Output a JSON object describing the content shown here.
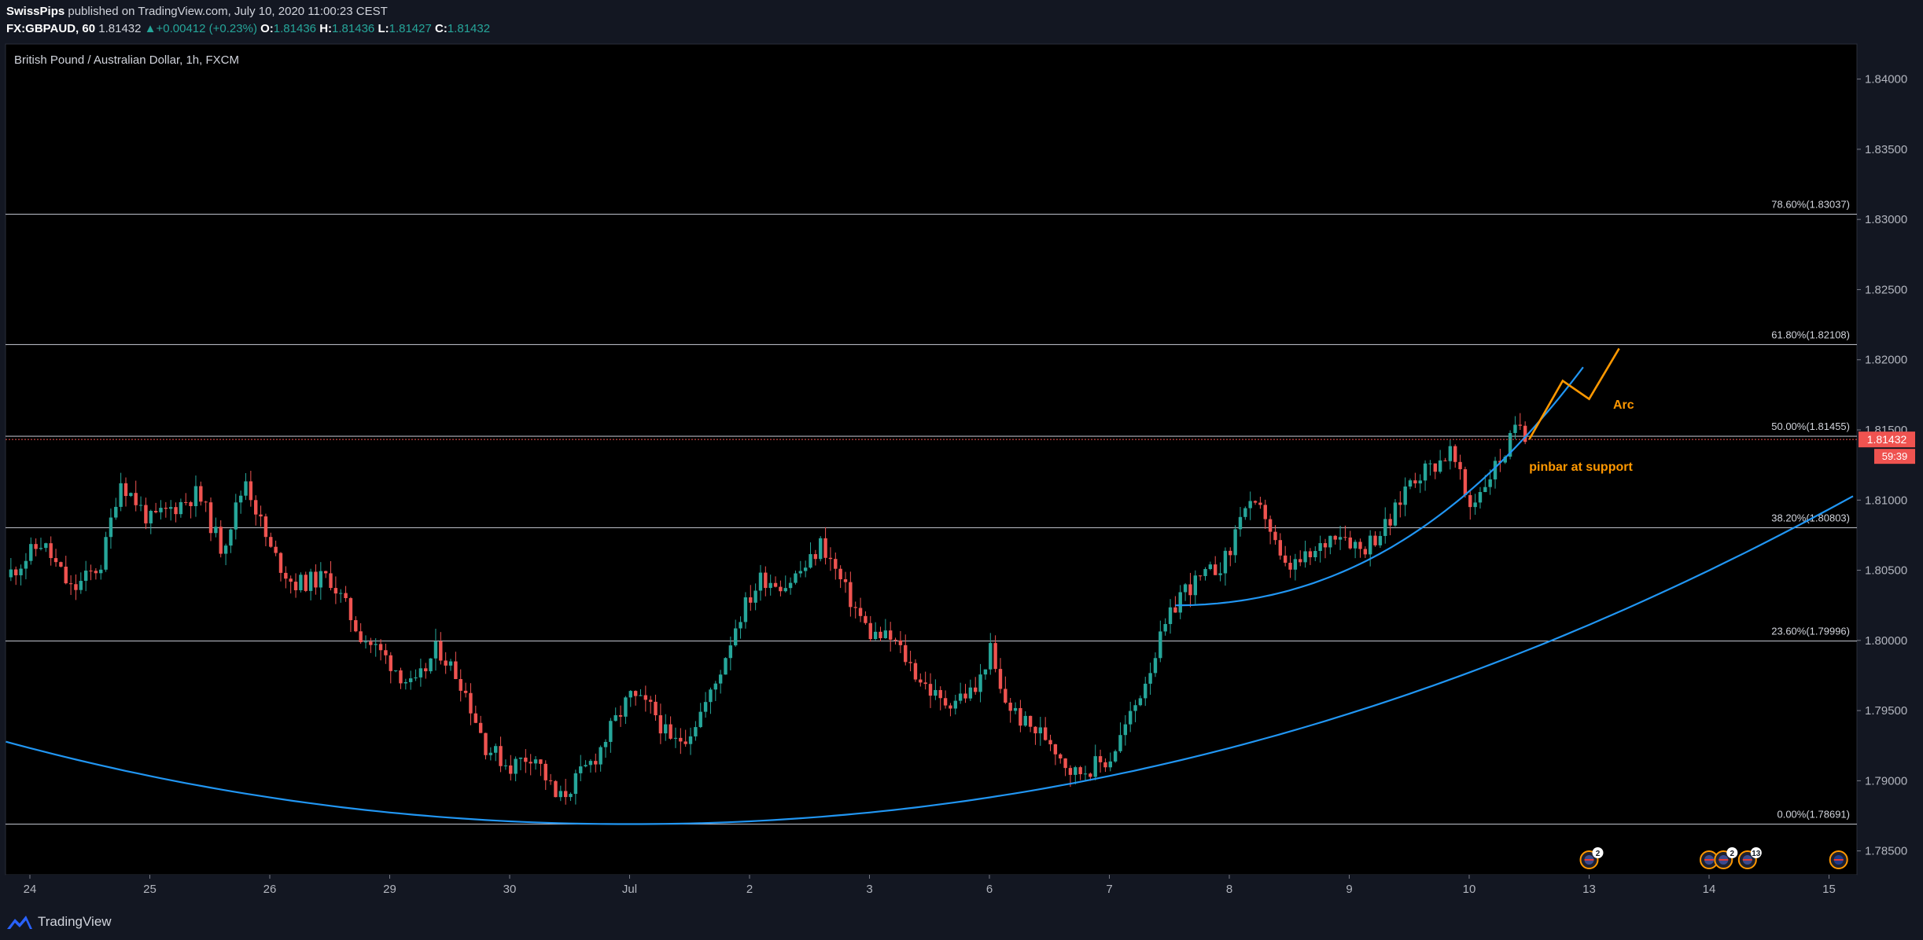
{
  "header": {
    "author": "SwissPips",
    "published": "published on TradingView.com, July 10, 2020 11:00:23 CEST",
    "symbol": "FX:GBPAUD, 60",
    "last": "1.81432",
    "change": "+0.00412 (+0.23%)",
    "open_label": "O:",
    "open": "1.81436",
    "high_label": "H:",
    "high": "1.81436",
    "low_label": "L:",
    "low": "1.81427",
    "close_label": "C:",
    "close": "1.81432",
    "up_color": "#26a69a"
  },
  "footer": {
    "brand": "TradingView",
    "brand_icon": "tradingview-logo-icon"
  },
  "chart_data": {
    "type": "candlestick",
    "title": "British Pound / Australian Dollar, 1h, FXCM",
    "ylim": [
      1.7833,
      1.8425
    ],
    "y_ticks": [
      1.785,
      1.79,
      1.795,
      1.8,
      1.805,
      1.81,
      1.815,
      1.82,
      1.825,
      1.83,
      1.835,
      1.84
    ],
    "y_tick_labels": [
      "1.78500",
      "1.79000",
      "1.79500",
      "1.80000",
      "1.80500",
      "1.81000",
      "1.81500",
      "1.82000",
      "1.82500",
      "1.83000",
      "1.83500",
      "1.84000"
    ],
    "x_ticks": [
      {
        "label": "24",
        "slot": 0
      },
      {
        "label": "25",
        "slot": 1
      },
      {
        "label": "26",
        "slot": 2
      },
      {
        "label": "29",
        "slot": 3
      },
      {
        "label": "30",
        "slot": 4
      },
      {
        "label": "Jul",
        "slot": 5
      },
      {
        "label": "2",
        "slot": 6
      },
      {
        "label": "3",
        "slot": 7
      },
      {
        "label": "6",
        "slot": 8
      },
      {
        "label": "7",
        "slot": 9
      },
      {
        "label": "8",
        "slot": 10
      },
      {
        "label": "9",
        "slot": 11
      },
      {
        "label": "10",
        "slot": 12
      },
      {
        "label": "13",
        "slot": 13
      },
      {
        "label": "14",
        "slot": 14
      },
      {
        "label": "15",
        "slot": 15
      }
    ],
    "current_price": {
      "value": 1.81432,
      "label": "1.81432",
      "countdown": "59:39",
      "color": "#ef5350"
    },
    "fib_levels": [
      {
        "pct": "0.00%",
        "value": 1.78691,
        "label": "0.00%(1.78691)"
      },
      {
        "pct": "23.60%",
        "value": 1.79996,
        "label": "23.60%(1.79996)"
      },
      {
        "pct": "38.20%",
        "value": 1.80803,
        "label": "38.20%(1.80803)"
      },
      {
        "pct": "50.00%",
        "value": 1.81455,
        "label": "50.00%(1.81455)"
      },
      {
        "pct": "61.80%",
        "value": 1.82108,
        "label": "61.80%(1.82108)"
      },
      {
        "pct": "78.60%",
        "value": 1.83037,
        "label": "78.60%(1.83037)"
      }
    ],
    "key_prices": [
      {
        "slot": -0.2,
        "price": 1.8045
      },
      {
        "slot": 0.1,
        "price": 1.807
      },
      {
        "slot": 0.35,
        "price": 1.8035
      },
      {
        "slot": 0.6,
        "price": 1.8055
      },
      {
        "slot": 0.75,
        "price": 1.8115
      },
      {
        "slot": 1.0,
        "price": 1.8085
      },
      {
        "slot": 1.4,
        "price": 1.8105
      },
      {
        "slot": 1.6,
        "price": 1.8065
      },
      {
        "slot": 1.8,
        "price": 1.8115
      },
      {
        "slot": 2.0,
        "price": 1.8065
      },
      {
        "slot": 2.2,
        "price": 1.804
      },
      {
        "slot": 2.5,
        "price": 1.8045
      },
      {
        "slot": 2.75,
        "price": 1.8005
      },
      {
        "slot": 3.0,
        "price": 1.7985
      },
      {
        "slot": 3.2,
        "price": 1.7965
      },
      {
        "slot": 3.4,
        "price": 1.7995
      },
      {
        "slot": 3.6,
        "price": 1.797
      },
      {
        "slot": 3.8,
        "price": 1.7925
      },
      {
        "slot": 4.0,
        "price": 1.791
      },
      {
        "slot": 4.2,
        "price": 1.792
      },
      {
        "slot": 4.4,
        "price": 1.7885
      },
      {
        "slot": 4.5,
        "price": 1.7895
      },
      {
        "slot": 4.7,
        "price": 1.7915
      },
      {
        "slot": 4.9,
        "price": 1.7945
      },
      {
        "slot": 5.0,
        "price": 1.796
      },
      {
        "slot": 5.2,
        "price": 1.795
      },
      {
        "slot": 5.35,
        "price": 1.7925
      },
      {
        "slot": 5.5,
        "price": 1.7935
      },
      {
        "slot": 5.7,
        "price": 1.7965
      },
      {
        "slot": 5.9,
        "price": 1.8015
      },
      {
        "slot": 6.1,
        "price": 1.8045
      },
      {
        "slot": 6.3,
        "price": 1.804
      },
      {
        "slot": 6.5,
        "price": 1.8055
      },
      {
        "slot": 6.6,
        "price": 1.807
      },
      {
        "slot": 6.8,
        "price": 1.8035
      },
      {
        "slot": 7.0,
        "price": 1.8005
      },
      {
        "slot": 7.2,
        "price": 1.8
      },
      {
        "slot": 7.4,
        "price": 1.7975
      },
      {
        "slot": 7.6,
        "price": 1.7955
      },
      {
        "slot": 7.9,
        "price": 1.7965
      },
      {
        "slot": 8.0,
        "price": 1.7995
      },
      {
        "slot": 8.1,
        "price": 1.796
      },
      {
        "slot": 8.3,
        "price": 1.794
      },
      {
        "slot": 8.5,
        "price": 1.793
      },
      {
        "slot": 8.7,
        "price": 1.7905
      },
      {
        "slot": 9.0,
        "price": 1.7915
      },
      {
        "slot": 9.2,
        "price": 1.795
      },
      {
        "slot": 9.4,
        "price": 1.7995
      },
      {
        "slot": 9.6,
        "price": 1.8035
      },
      {
        "slot": 9.8,
        "price": 1.8045
      },
      {
        "slot": 10.0,
        "price": 1.806
      },
      {
        "slot": 10.1,
        "price": 1.8095
      },
      {
        "slot": 10.3,
        "price": 1.809
      },
      {
        "slot": 10.45,
        "price": 1.805
      },
      {
        "slot": 10.7,
        "price": 1.806
      },
      {
        "slot": 10.9,
        "price": 1.808
      },
      {
        "slot": 11.1,
        "price": 1.8065
      },
      {
        "slot": 11.35,
        "price": 1.8085
      },
      {
        "slot": 11.5,
        "price": 1.8115
      },
      {
        "slot": 11.7,
        "price": 1.8125
      },
      {
        "slot": 11.85,
        "price": 1.8135
      },
      {
        "slot": 12.0,
        "price": 1.8095
      },
      {
        "slot": 12.15,
        "price": 1.8115
      },
      {
        "slot": 12.3,
        "price": 1.8135
      },
      {
        "slot": 12.42,
        "price": 1.8155
      },
      {
        "slot": 12.5,
        "price": 1.81432
      }
    ],
    "projection": [
      {
        "slot": 12.5,
        "price": 1.81432
      },
      {
        "slot": 12.78,
        "price": 1.8185
      },
      {
        "slot": 13.0,
        "price": 1.8172
      },
      {
        "slot": 13.25,
        "price": 1.8208
      }
    ],
    "projection_color": "#ff9800",
    "arc_color": "#2196f3",
    "annotations": [
      {
        "text": "Arc",
        "slot": 13.2,
        "price": 1.8165,
        "color": "#ff9800"
      },
      {
        "text": "pinbar at support",
        "slot": 12.5,
        "price": 1.8121,
        "color": "#ff9800"
      }
    ],
    "event_markers": [
      {
        "slot": 13.0,
        "count": "2",
        "icon": "gb-flag-icon"
      },
      {
        "slot": 14.0,
        "count": "",
        "icon": "gb-flag-icon"
      },
      {
        "slot": 14.12,
        "count": "2",
        "icon": "gb-flag-icon"
      },
      {
        "slot": 14.32,
        "count": "13",
        "icon": "gb-flag-icon"
      },
      {
        "slot": 15.08,
        "count": "",
        "icon": "au-flag-icon"
      }
    ],
    "bull_color": "#26a69a",
    "bear_color": "#ef5350",
    "grid": false
  }
}
